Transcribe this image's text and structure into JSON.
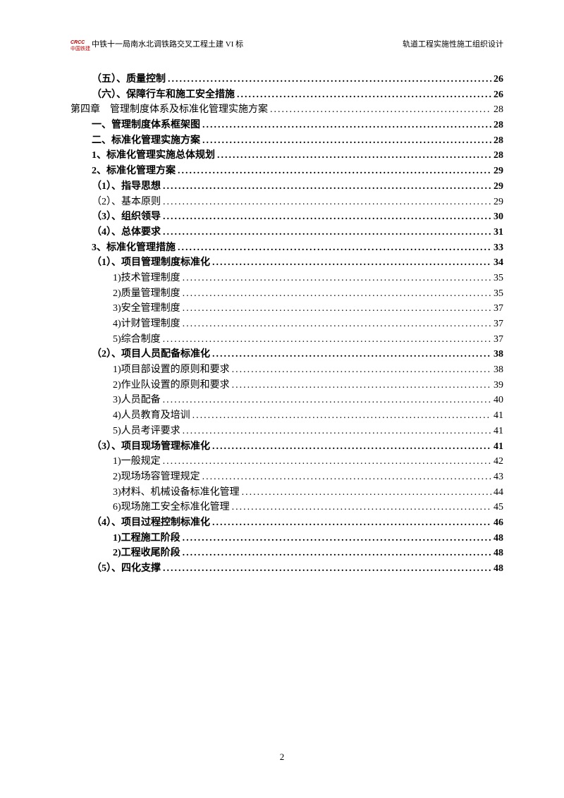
{
  "header": {
    "logo_top": "CRCC",
    "logo_bottom": "中国铁建",
    "left_text": "中铁十一局南水北调铁路交叉工程土建 VI 标",
    "right_text": "轨道工程实施性施工组织设计"
  },
  "toc": [
    {
      "indent": 1,
      "bold": true,
      "label": "（五）、质量控制",
      "page": "26"
    },
    {
      "indent": 1,
      "bold": true,
      "label": "（六）、保障行车和施工安全措施",
      "page": "26"
    },
    {
      "indent": 2,
      "bold": false,
      "label": "第四章　管理制度体系及标准化管理实施方案",
      "page": "28"
    },
    {
      "indent": 3,
      "bold": true,
      "label": "一、管理制度体系框架图",
      "page": "28"
    },
    {
      "indent": 3,
      "bold": true,
      "label": "二、标准化管理实施方案",
      "page": "28"
    },
    {
      "indent": 3,
      "bold": true,
      "label": "1、标准化管理实施总体规划",
      "page": "28"
    },
    {
      "indent": 3,
      "bold": true,
      "label": "2、标准化管理方案",
      "page": "29"
    },
    {
      "indent": 4,
      "bold": true,
      "label": "（1）、指导思想",
      "page": "29"
    },
    {
      "indent": 4,
      "bold": false,
      "label": "（2）、基本原则",
      "page": "29"
    },
    {
      "indent": 4,
      "bold": true,
      "label": "（3）、组织领导",
      "page": "30"
    },
    {
      "indent": 4,
      "bold": true,
      "label": "（4）、总体要求",
      "page": "31"
    },
    {
      "indent": 3,
      "bold": true,
      "label": "3、标准化管理措施",
      "page": "33"
    },
    {
      "indent": 4,
      "bold": true,
      "label": "（1）、项目管理制度标准化",
      "page": "34"
    },
    {
      "indent": 5,
      "bold": false,
      "label": "1)技术管理制度",
      "page": "35"
    },
    {
      "indent": 5,
      "bold": false,
      "label": "2)质量管理制度",
      "page": "35"
    },
    {
      "indent": 5,
      "bold": false,
      "label": "3)安全管理制度",
      "page": "37"
    },
    {
      "indent": 5,
      "bold": false,
      "label": "4)计财管理制度",
      "page": "37"
    },
    {
      "indent": 5,
      "bold": false,
      "label": "5)综合制度",
      "page": "37"
    },
    {
      "indent": 4,
      "bold": true,
      "label": "（2）、项目人员配备标准化",
      "page": "38"
    },
    {
      "indent": 5,
      "bold": false,
      "label": "1)项目部设置的原则和要求",
      "page": "38"
    },
    {
      "indent": 5,
      "bold": false,
      "label": "2)作业队设置的原则和要求",
      "page": "39"
    },
    {
      "indent": 5,
      "bold": false,
      "label": "3)人员配备",
      "page": "40"
    },
    {
      "indent": 5,
      "bold": false,
      "label": "4)人员教育及培训",
      "page": "41"
    },
    {
      "indent": 5,
      "bold": false,
      "label": "5)人员考评要求",
      "page": "41"
    },
    {
      "indent": 4,
      "bold": true,
      "label": "（3）、项目现场管理标准化",
      "page": "41"
    },
    {
      "indent": 5,
      "bold": false,
      "label": "1)一般规定",
      "page": "42"
    },
    {
      "indent": 5,
      "bold": false,
      "label": "2)现场场容管理规定",
      "page": "43"
    },
    {
      "indent": 5,
      "bold": false,
      "label": "3)材料、机械设备标准化管理",
      "page": "44"
    },
    {
      "indent": 5,
      "bold": false,
      "label": "6)现场施工安全标准化管理",
      "page": "45"
    },
    {
      "indent": 4,
      "bold": true,
      "label": "（4）、项目过程控制标准化",
      "page": " 46"
    },
    {
      "indent": 5,
      "bold": true,
      "label": "1)工程施工阶段",
      "page": "48"
    },
    {
      "indent": 5,
      "bold": true,
      "label": "2)工程收尾阶段",
      "page": "48"
    },
    {
      "indent": 4,
      "bold": true,
      "label": "（5）、四化支撑",
      "page": " 48"
    }
  ],
  "page_number": "2"
}
